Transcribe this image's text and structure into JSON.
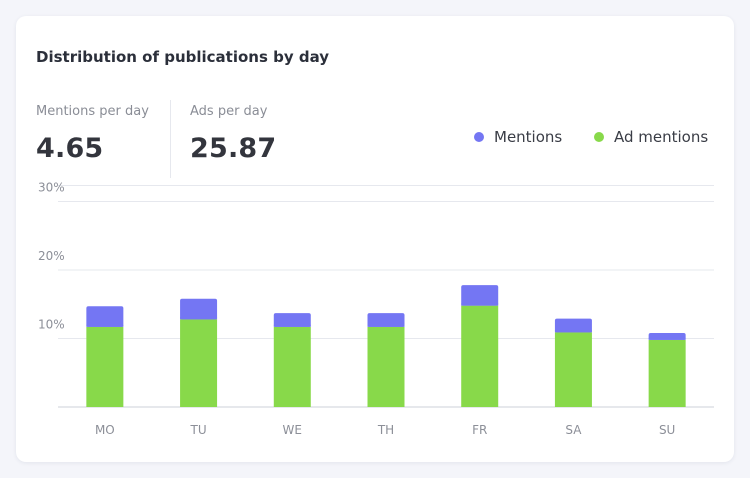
{
  "title": "Distribution of publications by day",
  "metrics": {
    "mentions": {
      "label": "Mentions per day",
      "value": "4.65"
    },
    "ads": {
      "label": "Ads per day",
      "value": "25.87"
    }
  },
  "colors": {
    "mentions": "#7476f3",
    "ad_mentions": "#88d94a",
    "grid": "#e6e8ee"
  },
  "chart_data": {
    "type": "bar",
    "stacked": true,
    "categories": [
      "MO",
      "TU",
      "WE",
      "TH",
      "FR",
      "SA",
      "SU"
    ],
    "series": [
      {
        "name": "Ad mentions",
        "values": [
          11.7,
          12.8,
          11.7,
          11.7,
          14.8,
          10.9,
          9.8
        ]
      },
      {
        "name": "Mentions",
        "values": [
          3.0,
          3.0,
          2.0,
          2.0,
          3.0,
          2.0,
          1.0
        ]
      }
    ],
    "yticks": [
      "10%",
      "20%",
      "30%"
    ],
    "ylim": [
      0,
      30
    ],
    "grid": true,
    "legend_position": "top-right"
  }
}
